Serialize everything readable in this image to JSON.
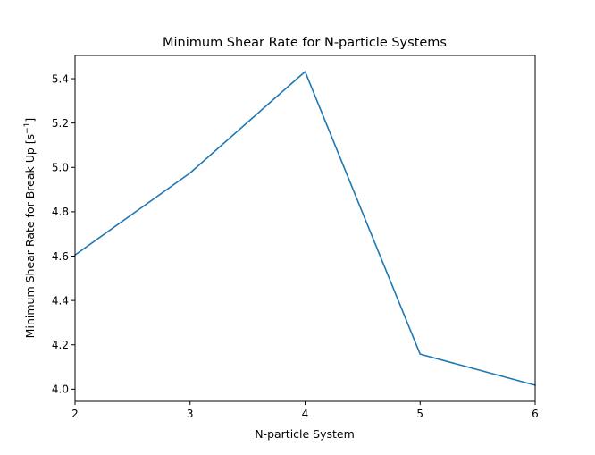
{
  "chart_data": {
    "type": "line",
    "title": "Minimum Shear Rate for N-particle Systems",
    "xlabel": "N-particle System",
    "ylabel": "Minimum Shear Rate for Break Up [s",
    "ylabel_sup": "−1",
    "ylabel_close": "]",
    "xlim": [
      2,
      6
    ],
    "ylim": [
      3.945,
      5.505
    ],
    "xticks": [
      2,
      3,
      4,
      5,
      6
    ],
    "yticks": [
      4.0,
      4.2,
      4.4,
      4.6,
      4.8,
      5.0,
      5.2,
      5.4
    ],
    "grid": false,
    "series": [
      {
        "x": [
          2,
          3,
          4,
          5,
          6
        ],
        "values": [
          4.605,
          4.975,
          5.432,
          4.158,
          4.018
        ],
        "color": "#1f77b4"
      }
    ]
  }
}
